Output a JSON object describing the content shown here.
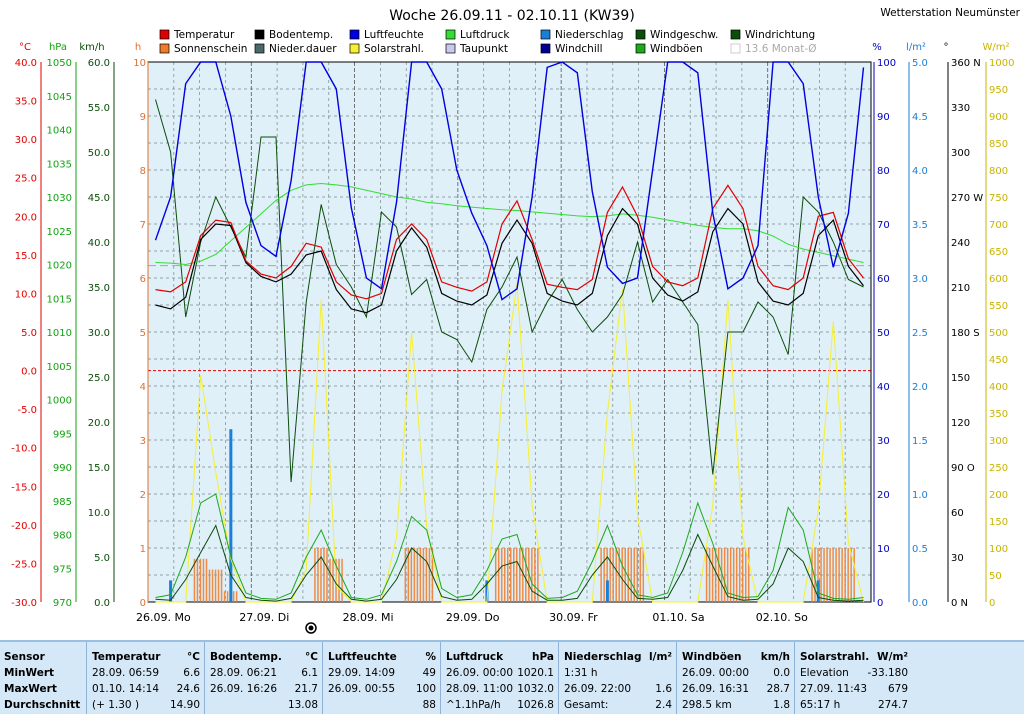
{
  "chart_data": {
    "type": "line",
    "title": "Woche 26.09.11 - 02.10.11 (KW39)",
    "station": "Wetterstation Neumünster",
    "x_labels": [
      "26.09. Mo",
      "27.09. Di",
      "28.09. Mi",
      "29.09. Do",
      "30.09. Fr",
      "01.10. Sa",
      "02.10. So"
    ],
    "legend": [
      {
        "label": "Temperatur",
        "color": "#e00000"
      },
      {
        "label": "Bodentemp.",
        "color": "#000000"
      },
      {
        "label": "Luftfeuchte",
        "color": "#0000e0"
      },
      {
        "label": "Luftdruck",
        "color": "#33dd33"
      },
      {
        "label": "Niederschlag",
        "color": "#1a7fd8"
      },
      {
        "label": "Windgeschw.",
        "color": "#0b4d0b"
      },
      {
        "label": "Windrichtung",
        "color": "#0b4d0b"
      },
      {
        "label": "Sonnenschein",
        "color": "#f07a2a"
      },
      {
        "label": "Nieder.dauer",
        "color": "#4a6a6a"
      },
      {
        "label": "Solarstrahl.",
        "color": "#f8ef30"
      },
      {
        "label": "Taupunkt",
        "color": "#c8c8f0"
      },
      {
        "label": "Windchill",
        "color": "#000090"
      },
      {
        "label": "Windböen",
        "color": "#1ea81e"
      },
      {
        "label": "13.6 Monat-Ø",
        "color": "#bbbbbb"
      }
    ],
    "axes": {
      "temp": {
        "unit": "°C",
        "ticks": [
          "40.0",
          "35.0",
          "30.0",
          "25.0",
          "20.0",
          "15.0",
          "10.0",
          "5.0",
          "0.0",
          "-5.0",
          "-10.0",
          "-15.0",
          "-20.0",
          "-25.0",
          "-30.0"
        ],
        "color": "#e00000"
      },
      "pressure": {
        "unit": "hPa",
        "ticks": [
          "1050",
          "1045",
          "1040",
          "1035",
          "1030",
          "1025",
          "1020",
          "1015",
          "1010",
          "1005",
          "1000",
          "995",
          "990",
          "985",
          "980",
          "975",
          "970"
        ],
        "color": "#13a313"
      },
      "wind": {
        "unit": "km/h",
        "ticks": [
          "60.0",
          "55.0",
          "50.0",
          "45.0",
          "40.0",
          "35.0",
          "30.0",
          "25.0",
          "20.0",
          "15.0",
          "10.0",
          "5.0",
          "0.0"
        ],
        "color": "#0b4d0b"
      },
      "hours": {
        "unit": "h",
        "ticks": [
          "10",
          "9",
          "8",
          "7",
          "6",
          "5",
          "4",
          "3",
          "2",
          "1",
          "0"
        ],
        "color": "#e07030"
      },
      "humidity": {
        "unit": "%",
        "ticks": [
          "100",
          "90",
          "80",
          "70",
          "60",
          "50",
          "40",
          "30",
          "20",
          "10",
          "0"
        ],
        "color": "#0000c0"
      },
      "rain": {
        "unit": "l/m²",
        "ticks": [
          "5.0",
          "4.5",
          "4.0",
          "3.5",
          "3.0",
          "2.5",
          "2.0",
          "1.5",
          "1.0",
          "0.5",
          "0.0"
        ],
        "color": "#1a7fd8"
      },
      "direction": {
        "unit": "°",
        "ticks": [
          "360 N",
          "330",
          "300",
          "270 W",
          "240",
          "210",
          "180 S",
          "150",
          "120",
          "90 O",
          "60",
          "30",
          "0 N"
        ],
        "color": "#000000"
      },
      "solar": {
        "unit": "W/m²",
        "ticks": [
          "1000",
          "950",
          "900",
          "850",
          "800",
          "750",
          "700",
          "650",
          "600",
          "550",
          "500",
          "450",
          "400",
          "350",
          "300",
          "250",
          "200",
          "150",
          "100",
          "50",
          "0"
        ],
        "color": "#c8b400"
      }
    },
    "series": [
      {
        "name": "Temperatur",
        "color": "#e00000",
        "values": [
          10.5,
          10.2,
          11.5,
          17.5,
          19.5,
          19.2,
          14.2,
          12.5,
          12.0,
          13.5,
          16.5,
          16.0,
          11.5,
          9.8,
          9.3,
          10.0,
          17.0,
          19.0,
          17.0,
          11.5,
          10.8,
          10.3,
          11.5,
          19.0,
          22.0,
          17.0,
          11.2,
          10.8,
          10.5,
          11.8,
          20.5,
          23.8,
          20.0,
          13.5,
          11.5,
          11.0,
          12.0,
          21.0,
          24.0,
          21.0,
          13.5,
          11.0,
          10.5,
          12.0,
          20.0,
          20.5,
          14.5,
          12.0
        ]
      },
      {
        "name": "Bodentemp.",
        "color": "#000000",
        "values": [
          8.5,
          8.0,
          9.5,
          17.0,
          19.0,
          18.8,
          14.0,
          12.2,
          11.5,
          12.5,
          15.0,
          15.5,
          10.5,
          8.0,
          7.5,
          8.5,
          15.5,
          18.5,
          16.0,
          10.0,
          9.0,
          8.5,
          9.8,
          16.5,
          19.5,
          16.5,
          10.0,
          9.0,
          8.5,
          10.0,
          17.5,
          21.0,
          19.0,
          12.0,
          9.8,
          9.0,
          10.2,
          18.0,
          21.0,
          19.0,
          11.5,
          9.0,
          8.5,
          10.0,
          17.5,
          19.5,
          13.5,
          11.0
        ]
      },
      {
        "name": "Luftfeuchte",
        "color": "#0000e0",
        "values": [
          67,
          75,
          96,
          100,
          100,
          90,
          74,
          66,
          64,
          78,
          100,
          100,
          95,
          73,
          60,
          58,
          74,
          100,
          100,
          95,
          80,
          72,
          66,
          56,
          58,
          75,
          99,
          100,
          98,
          76,
          62,
          59,
          60,
          80,
          100,
          100,
          98,
          72,
          58,
          60,
          66,
          100,
          100,
          96,
          75,
          62,
          72,
          99
        ]
      },
      {
        "name": "Luftdruck",
        "color": "#33dd33",
        "values": [
          1020.3,
          1020.2,
          1020.0,
          1020.5,
          1021.5,
          1023.5,
          1025.5,
          1027.5,
          1029.5,
          1031.0,
          1031.8,
          1032.0,
          1031.8,
          1031.5,
          1031.0,
          1030.5,
          1030.0,
          1029.7,
          1029.2,
          1029.0,
          1028.7,
          1028.5,
          1028.3,
          1028.1,
          1028.0,
          1027.8,
          1027.6,
          1027.4,
          1027.2,
          1027.1,
          1027.2,
          1027.5,
          1027.3,
          1027.0,
          1026.6,
          1026.2,
          1025.8,
          1025.5,
          1025.3,
          1025.3,
          1025.0,
          1024.2,
          1023.0,
          1022.3,
          1021.8,
          1021.3,
          1020.8,
          1020.3
        ]
      },
      {
        "name": "Windgeschw.",
        "color": "#0b4d0b",
        "values": [
          0.3,
          0.2,
          2.5,
          5.5,
          8.5,
          3.0,
          0.5,
          0.2,
          0.1,
          0.4,
          3.0,
          5.0,
          2.0,
          0.3,
          0.1,
          0.3,
          2.5,
          6.0,
          4.5,
          0.6,
          0.2,
          0.3,
          2.0,
          4.0,
          4.5,
          1.2,
          0.2,
          0.2,
          0.4,
          3.0,
          5.0,
          2.5,
          0.4,
          0.3,
          0.5,
          3.5,
          7.5,
          4.0,
          0.6,
          0.2,
          0.3,
          2.0,
          6.0,
          4.5,
          0.5,
          0.2,
          0.1,
          0.2
        ]
      },
      {
        "name": "Windböen",
        "color": "#1ea81e",
        "values": [
          0.5,
          0.8,
          5.0,
          11.0,
          12.0,
          5.0,
          1.0,
          0.4,
          0.3,
          1.0,
          5.0,
          8.0,
          4.0,
          0.5,
          0.3,
          0.8,
          4.5,
          9.5,
          8.0,
          1.5,
          0.5,
          0.8,
          3.5,
          7.0,
          7.5,
          2.0,
          0.4,
          0.5,
          1.2,
          4.5,
          8.5,
          4.0,
          0.8,
          0.5,
          1.0,
          5.5,
          11.0,
          6.5,
          1.0,
          0.5,
          0.6,
          3.5,
          10.5,
          8.0,
          1.0,
          0.4,
          0.3,
          0.5
        ]
      },
      {
        "name": "Windrichtung",
        "color": "#0b4d0b",
        "values": [
          335,
          300,
          190,
          240,
          270,
          250,
          230,
          310,
          310,
          80,
          200,
          265,
          225,
          210,
          190,
          260,
          250,
          205,
          215,
          180,
          175,
          160,
          195,
          210,
          230,
          180,
          200,
          215,
          195,
          180,
          190,
          205,
          240,
          200,
          215,
          200,
          185,
          85,
          180,
          180,
          200,
          190,
          165,
          270,
          260,
          240,
          215,
          210
        ]
      },
      {
        "name": "Solarstrahl.",
        "color": "#f8ef30",
        "values": [
          0,
          0,
          0,
          420,
          240,
          80,
          0,
          0,
          0,
          0,
          60,
          560,
          30,
          0,
          0,
          0,
          120,
          500,
          140,
          0,
          0,
          0,
          0,
          390,
          590,
          180,
          0,
          0,
          0,
          0,
          350,
          580,
          160,
          0,
          0,
          0,
          0,
          180,
          560,
          120,
          0,
          0,
          0,
          0,
          170,
          520,
          110,
          0
        ]
      },
      {
        "name": "Sonnenschein",
        "color": "#f07a2a",
        "values": [
          0,
          0,
          0,
          0.8,
          0.6,
          0.2,
          0,
          0,
          0,
          0,
          0,
          1.0,
          0.8,
          0,
          0,
          0,
          0,
          1.0,
          1.0,
          0,
          0,
          0,
          0,
          1.0,
          1.0,
          1.0,
          0,
          0,
          0,
          0,
          1.0,
          1.0,
          1.0,
          0,
          0,
          0,
          0,
          1.0,
          1.0,
          1.0,
          0,
          0,
          0,
          0,
          1.0,
          1.0,
          1.0,
          0
        ]
      },
      {
        "name": "Niederschlag",
        "color": "#1a7fd8",
        "values": [
          0,
          0.2,
          0,
          0,
          0,
          1.6,
          0,
          0,
          0,
          0,
          0,
          0,
          0,
          0,
          0,
          0,
          0,
          0,
          0,
          0,
          0,
          0,
          0.2,
          0,
          0,
          0,
          0,
          0,
          0,
          0,
          0.2,
          0,
          0,
          0,
          0,
          0,
          0,
          0,
          0,
          0,
          0,
          0,
          0,
          0,
          0.2,
          0,
          0,
          0
        ]
      }
    ]
  },
  "stats": {
    "columns": [
      {
        "header": "Sensor",
        "unit": "",
        "rows": [
          [
            "MinWert",
            ""
          ],
          [
            "MaxWert",
            ""
          ],
          [
            "Durchschnitt",
            ""
          ]
        ]
      },
      {
        "header": "Temperatur",
        "unit": "°C",
        "rows": [
          [
            "28.09.  06:59",
            "6.6"
          ],
          [
            "01.10.  14:14",
            "24.6"
          ],
          [
            "(+ 1.30 )",
            "14.90"
          ]
        ]
      },
      {
        "header": "Bodentemp.",
        "unit": "°C",
        "rows": [
          [
            "28.09.  06:21",
            "6.1"
          ],
          [
            "26.09.  16:26",
            "21.7"
          ],
          [
            "",
            "13.08"
          ]
        ]
      },
      {
        "header": "Luftfeuchte",
        "unit": "%",
        "rows": [
          [
            "29.09.  14:09",
            "49"
          ],
          [
            "26.09.  00:55",
            "100"
          ],
          [
            "",
            "88"
          ]
        ]
      },
      {
        "header": "Luftdruck",
        "unit": "hPa",
        "rows": [
          [
            "26.09.  00:00",
            "1020.1"
          ],
          [
            "28.09.  11:00",
            "1032.0"
          ],
          [
            "^1.1hPa/h",
            "1026.8"
          ]
        ]
      },
      {
        "header": "Niederschlag",
        "unit": "l/m²",
        "rows": [
          [
            "1:31 h",
            ""
          ],
          [
            "26.09.  22:00",
            "1.6"
          ],
          [
            "Gesamt:",
            "2.4"
          ]
        ]
      },
      {
        "header": "Windböen",
        "unit": "km/h",
        "rows": [
          [
            "26.09.  00:00",
            "0.0"
          ],
          [
            "26.09.  16:31",
            "28.7"
          ],
          [
            "298.5 km",
            "1.8"
          ]
        ]
      },
      {
        "header": "Solarstrahl.",
        "unit": "W/m²",
        "rows": [
          [
            "Elevation",
            "-33.180"
          ],
          [
            "27.09.  11:43",
            "679"
          ],
          [
            "65:17 h",
            "274.7"
          ]
        ]
      }
    ]
  }
}
